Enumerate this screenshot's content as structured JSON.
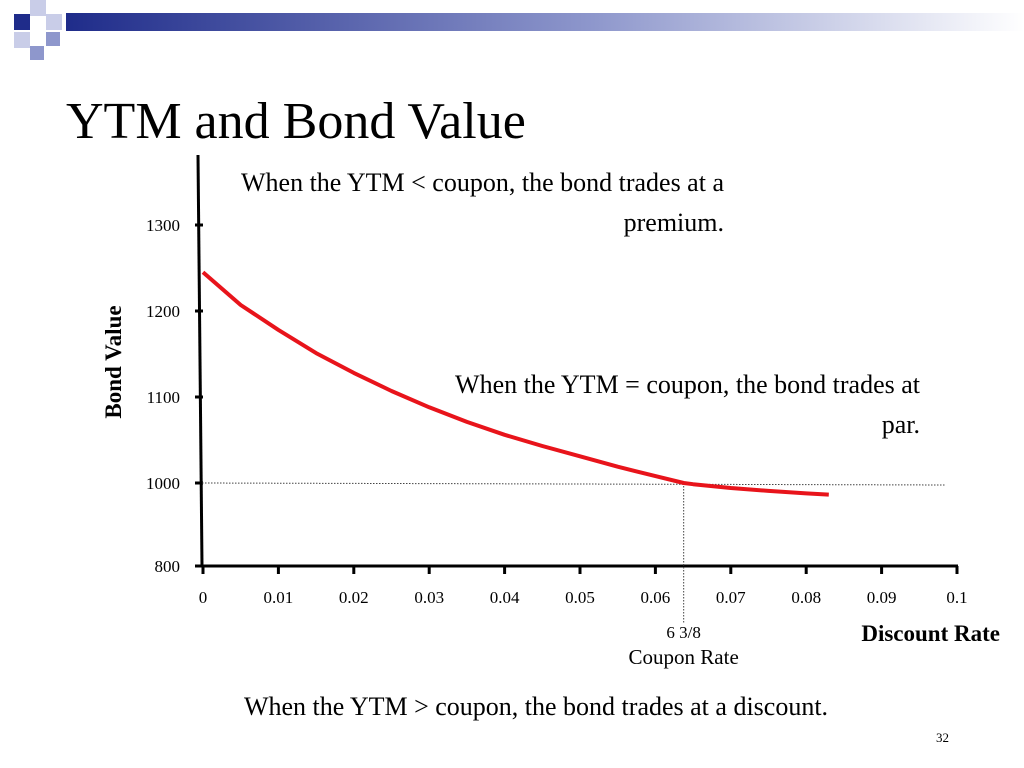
{
  "slide": {
    "title": "YTM and Bond Value",
    "number": "32",
    "accent_color": "#1f2c8a",
    "decor_light_color": "#c9cde8"
  },
  "annotations": {
    "premium": "When the YTM < coupon, the bond trades at a premium.",
    "par": "When the YTM = coupon, the bond trades at par.",
    "discount": "When the YTM > coupon, the bond trades at a discount."
  },
  "chart_data": {
    "type": "line",
    "title": "",
    "xlabel": "Discount Rate",
    "ylabel": "Bond Value",
    "xlim": [
      0,
      0.1
    ],
    "ylim": [
      800,
      1300
    ],
    "x_ticks": [
      "0",
      "0.01",
      "0.02",
      "0.03",
      "0.04",
      "0.05",
      "0.06",
      "0.07",
      "0.08",
      "0.09",
      "0.1"
    ],
    "y_ticks": [
      "800",
      "1000",
      "1100",
      "1200",
      "1300"
    ],
    "grid": false,
    "curve_color": "#e8141b",
    "series": [
      {
        "x": [
          0.0,
          0.005,
          0.01,
          0.015,
          0.02,
          0.025,
          0.03,
          0.035,
          0.04,
          0.045,
          0.05,
          0.055,
          0.06,
          0.06375,
          0.065,
          0.07,
          0.075,
          0.08,
          0.083
        ],
        "values": [
          1245,
          1207,
          1178,
          1151,
          1128,
          1107,
          1088,
          1071,
          1056,
          1043,
          1031,
          1019,
          1008,
          1000,
          997,
          988,
          981,
          975,
          972
        ]
      }
    ],
    "reference": {
      "coupon_rate": 0.06375,
      "par_value": 1000,
      "coupon_tick_label": "6 3/8",
      "coupon_caption": "Coupon Rate"
    }
  }
}
